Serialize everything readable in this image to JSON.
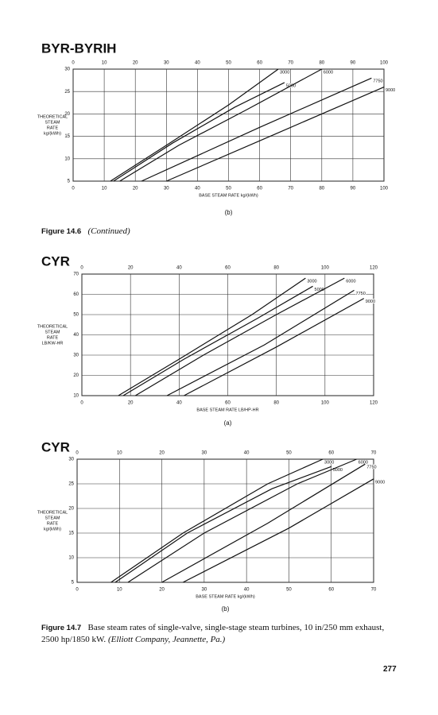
{
  "chart_data": [
    {
      "type": "line",
      "title": "BYR-BYRIH",
      "subtitle": "(b)",
      "xlabel": "BASE STEAM RATE kg/(kWh)",
      "ylabel": [
        "THEORETICAL",
        "STEAM",
        "RATE",
        "kg/(kWh)"
      ],
      "xlim": [
        0,
        100
      ],
      "ylim": [
        5,
        30
      ],
      "xticks": [
        0,
        10,
        20,
        30,
        40,
        50,
        60,
        70,
        80,
        90,
        100
      ],
      "yticks": [
        5,
        10,
        15,
        20,
        25,
        30
      ],
      "grid": true,
      "series": [
        {
          "name": "3000",
          "color": "#111",
          "x": [
            12,
            30,
            50,
            66
          ],
          "values": [
            5,
            13,
            22,
            30
          ]
        },
        {
          "name": "5000",
          "color": "#111",
          "x": [
            13,
            32,
            52,
            68
          ],
          "values": [
            5,
            13.5,
            21.5,
            27
          ]
        },
        {
          "name": "6000",
          "color": "#111",
          "x": [
            15,
            34,
            56,
            80
          ],
          "values": [
            5,
            13,
            21,
            30
          ]
        },
        {
          "name": "7750",
          "color": "#111",
          "x": [
            22,
            60,
            96
          ],
          "values": [
            5,
            17,
            28
          ]
        },
        {
          "name": "9000",
          "color": "#111",
          "x": [
            30,
            65,
            100
          ],
          "values": [
            5,
            15.5,
            26
          ]
        }
      ]
    },
    {
      "type": "line",
      "title": "CYR",
      "subtitle": "(a)",
      "xlabel": "BASE STEAM RATE LB/HP-HR",
      "ylabel": [
        "THEORETICAL",
        "STEAM",
        "RATE",
        "LB/KW-HR"
      ],
      "xlim": [
        0,
        120
      ],
      "ylim": [
        10,
        70
      ],
      "xticks": [
        0,
        20,
        40,
        60,
        80,
        100,
        120
      ],
      "yticks": [
        10,
        20,
        30,
        40,
        50,
        60,
        70
      ],
      "grid": true,
      "series": [
        {
          "name": "3000",
          "color": "#111",
          "x": [
            15,
            40,
            70,
            92
          ],
          "values": [
            10,
            28,
            50,
            68
          ]
        },
        {
          "name": "5000",
          "color": "#111",
          "x": [
            17,
            42,
            72,
            95
          ],
          "values": [
            10,
            28,
            48,
            64
          ]
        },
        {
          "name": "6000",
          "color": "#111",
          "x": [
            22,
            50,
            80,
            108
          ],
          "values": [
            10,
            30,
            50,
            68
          ]
        },
        {
          "name": "7750",
          "color": "#111",
          "x": [
            35,
            75,
            112
          ],
          "values": [
            10,
            35,
            62
          ]
        },
        {
          "name": "9000",
          "color": "#111",
          "x": [
            42,
            80,
            116
          ],
          "values": [
            10,
            34,
            58
          ]
        }
      ]
    },
    {
      "type": "line",
      "title": "CYR",
      "subtitle": "(b)",
      "xlabel": "BASE STEAM RATE kg/(kWh)",
      "ylabel": [
        "THEORETICAL",
        "STEAM",
        "RATE",
        "kg/(kWh)"
      ],
      "xlim": [
        0,
        70
      ],
      "ylim": [
        5,
        30
      ],
      "xticks": [
        0,
        10,
        20,
        30,
        40,
        50,
        60,
        70
      ],
      "yticks": [
        5,
        10,
        15,
        20,
        25,
        30
      ],
      "grid": true,
      "series": [
        {
          "name": "3000",
          "color": "#111",
          "x": [
            8,
            25,
            45,
            58
          ],
          "values": [
            5,
            15,
            25,
            30
          ]
        },
        {
          "name": "5000",
          "color": "#111",
          "x": [
            9,
            26,
            46,
            60
          ],
          "values": [
            5,
            15,
            24,
            28.5
          ]
        },
        {
          "name": "6000",
          "color": "#111",
          "x": [
            12,
            30,
            52,
            66
          ],
          "values": [
            5,
            15,
            25,
            30
          ]
        },
        {
          "name": "7750",
          "color": "#111",
          "x": [
            20,
            45,
            68
          ],
          "values": [
            5,
            17,
            29
          ]
        },
        {
          "name": "9000",
          "color": "#111",
          "x": [
            25,
            50,
            70
          ],
          "values": [
            5,
            16,
            26
          ]
        }
      ]
    }
  ],
  "page": {
    "figure_14_6": {
      "label": "Figure 14.6",
      "text": "(Continued)"
    },
    "figure_14_7": {
      "label": "Figure 14.7",
      "text": "Base steam rates of single-valve, single-stage steam turbines, 10 in/250 mm exhaust, 2500 hp/1850 kW.",
      "source": "(Elliott Company, Jeannette, Pa.)"
    },
    "page_number": "277"
  }
}
